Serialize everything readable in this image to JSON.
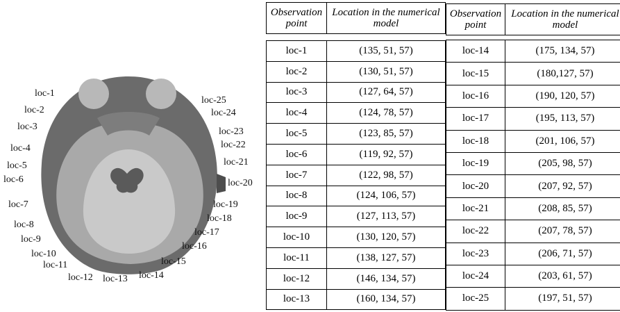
{
  "figure": {
    "labels": [
      "loc-1",
      "loc-2",
      "loc-3",
      "loc-4",
      "loc-5",
      "loc-6",
      "loc-7",
      "loc-8",
      "loc-9",
      "loc-10",
      "loc-11",
      "loc-12",
      "loc-13",
      "loc-14",
      "loc-15",
      "loc-16",
      "loc-17",
      "loc-18",
      "loc-19",
      "loc-20",
      "loc-21",
      "loc-22",
      "loc-23",
      "loc-24",
      "loc-25"
    ]
  },
  "tables": [
    {
      "header": [
        "Observation point",
        "Location in the numerical model"
      ],
      "rows": [
        [
          "loc-1",
          "(135, 51, 57)"
        ],
        [
          "loc-2",
          "(130, 51, 57)"
        ],
        [
          "loc-3",
          "(127, 64, 57)"
        ],
        [
          "loc-4",
          "(124, 78, 57)"
        ],
        [
          "loc-5",
          "(123, 85, 57)"
        ],
        [
          "loc-6",
          "(119, 92, 57)"
        ],
        [
          "loc-7",
          "(122, 98, 57)"
        ],
        [
          "loc-8",
          "(124, 106, 57)"
        ],
        [
          "loc-9",
          "(127, 113, 57)"
        ],
        [
          "loc-10",
          "(130, 120, 57)"
        ],
        [
          "loc-11",
          "(138, 127, 57)"
        ],
        [
          "loc-12",
          "(146, 134, 57)"
        ],
        [
          "loc-13",
          "(160, 134, 57)"
        ]
      ]
    },
    {
      "header": [
        "Observation point",
        "Location in the numerical model"
      ],
      "rows": [
        [
          "loc-14",
          "(175, 134, 57)"
        ],
        [
          "loc-15",
          "(180,127, 57)"
        ],
        [
          "loc-16",
          "(190, 120, 57)"
        ],
        [
          "loc-17",
          "(195, 113, 57)"
        ],
        [
          "loc-18",
          "(201, 106, 57)"
        ],
        [
          "loc-19",
          "(205, 98, 57)"
        ],
        [
          "loc-20",
          "(207, 92, 57)"
        ],
        [
          "loc-21",
          "(208, 85, 57)"
        ],
        [
          "loc-22",
          "(207, 78, 57)"
        ],
        [
          "loc-23",
          "(206, 71, 57)"
        ],
        [
          "loc-24",
          "(203, 61, 57)"
        ],
        [
          "loc-25",
          "(197, 51, 57)"
        ]
      ]
    }
  ]
}
